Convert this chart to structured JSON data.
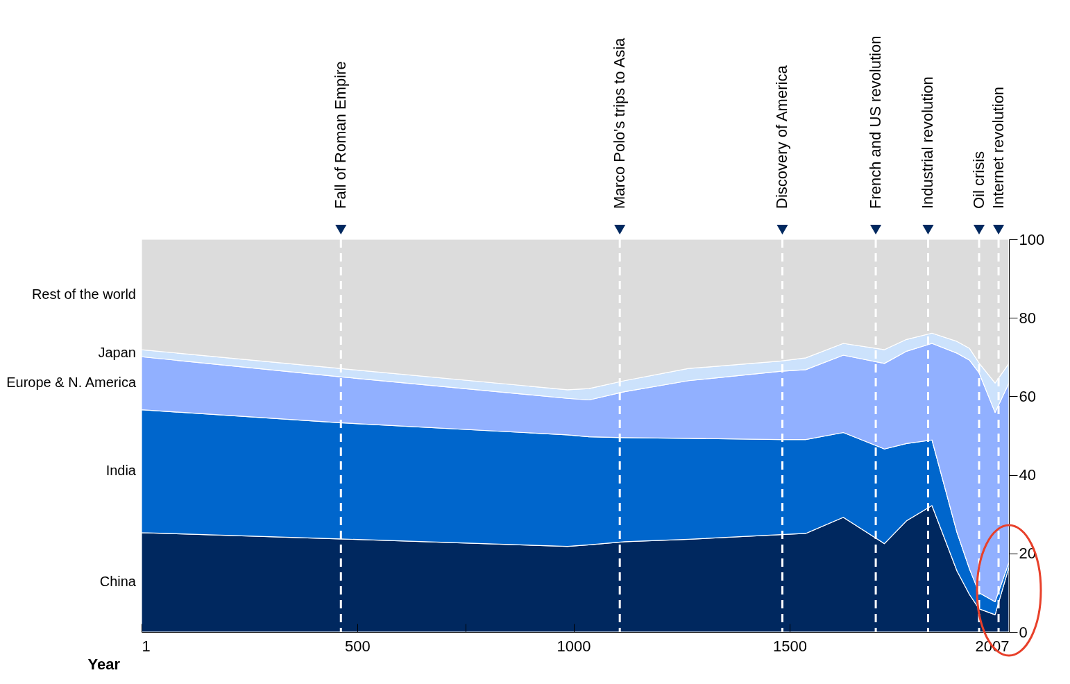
{
  "chart_data": {
    "type": "area",
    "stacked": true,
    "xlabel": "Year",
    "legend": "left",
    "grid": false,
    "x": [
      1,
      460,
      986,
      1036,
      1118,
      1266,
      1480,
      1537,
      1624,
      1719,
      1770,
      1829,
      1887,
      1916,
      1938,
      1975,
      2007
    ],
    "xlim": [
      1,
      2007
    ],
    "xticks": [
      1,
      500,
      {
        "value": 750,
        "label": null
      },
      1000,
      1500,
      2007
    ],
    "ylim": [
      0,
      100
    ],
    "yticks": [
      0,
      20,
      40,
      60,
      80,
      100
    ],
    "series": [
      {
        "name": "China",
        "color": "#00285f",
        "values": [
          25.3,
          23.7,
          21.8,
          22.2,
          23.0,
          23.6,
          24.8,
          25.1,
          29.2,
          22.5,
          28.3,
          32.2,
          15.5,
          9.5,
          5.9,
          4.4,
          16.5
        ]
      },
      {
        "name": "India",
        "color": "#0066cc",
        "values": [
          31.3,
          29.6,
          28.4,
          27.5,
          26.5,
          25.7,
          24.2,
          23.9,
          21.6,
          24.1,
          19.7,
          16.7,
          9.8,
          6.5,
          4.1,
          3.3,
          1.2
        ]
      },
      {
        "name": "Europe & N. America",
        "color": "#91b0ff",
        "values": [
          13.5,
          11.7,
          9.3,
          9.4,
          11.7,
          14.7,
          17.4,
          17.8,
          19.7,
          21.8,
          23.5,
          24.6,
          45.7,
          53.2,
          56.0,
          48.2,
          45.7
        ]
      },
      {
        "name": "Japan",
        "color": "#cce2fc",
        "values": [
          1.8,
          2.1,
          2.2,
          2.9,
          2.8,
          3.1,
          2.6,
          3.0,
          3.0,
          3.5,
          3.0,
          2.6,
          3.0,
          3.0,
          2.5,
          7.5,
          5.0
        ]
      },
      {
        "name": "Rest of the world",
        "color": "#dcdcdc",
        "values": [
          28.1,
          32.9,
          38.3,
          38.0,
          36.0,
          32.9,
          31.0,
          30.2,
          26.5,
          28.1,
          25.5,
          23.9,
          26.0,
          27.8,
          31.5,
          36.6,
          31.6
        ]
      }
    ],
    "ref_lines": [
      {
        "axis": "x",
        "value": 462,
        "label": "Fall of Roman Empire"
      },
      {
        "axis": "x",
        "value": 1107,
        "label": "Marco Polo's trips to Asia"
      },
      {
        "axis": "x",
        "value": 1483,
        "label": "Discovery of America"
      },
      {
        "axis": "x",
        "value": 1699,
        "label": "French and US revolution"
      },
      {
        "axis": "x",
        "value": 1820,
        "label": "Industrial revolution"
      },
      {
        "axis": "x",
        "value": 1938,
        "label": "Oil crisis"
      },
      {
        "axis": "x",
        "value": 1983,
        "label": "Internet revolution"
      }
    ]
  }
}
